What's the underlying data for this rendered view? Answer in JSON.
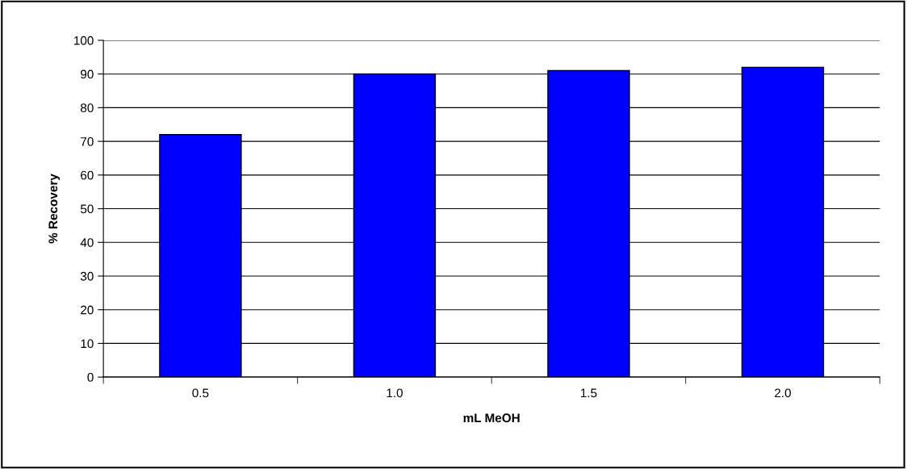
{
  "chart_data": {
    "type": "bar",
    "xlabel": "mL MeOH",
    "ylabel": "% Recovery",
    "categories": [
      "0.5",
      "1.0",
      "1.5",
      "2.0"
    ],
    "values": [
      72,
      90,
      91,
      92
    ],
    "color": "#0000ff",
    "ylim": [
      0,
      100
    ],
    "yticks": [
      0,
      10,
      20,
      30,
      40,
      50,
      60,
      70,
      80,
      90,
      100
    ],
    "grid": "y"
  }
}
